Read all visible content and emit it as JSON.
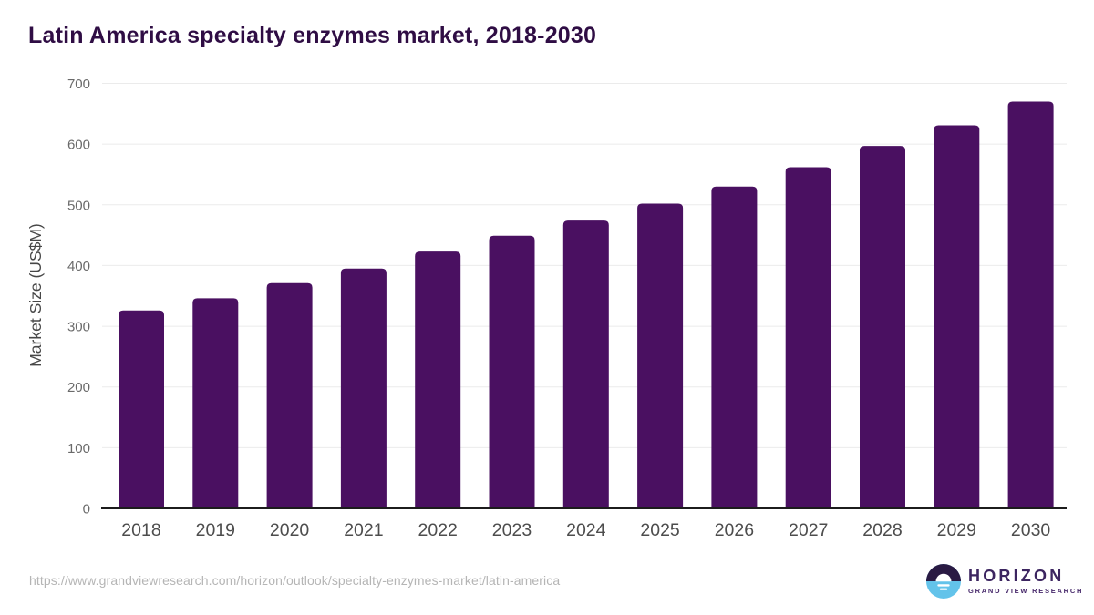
{
  "title": "Latin America specialty enzymes market, 2018-2030",
  "chart_data": {
    "type": "bar",
    "title": "Latin America specialty enzymes market, 2018-2030",
    "categories": [
      "2018",
      "2019",
      "2020",
      "2021",
      "2022",
      "2023",
      "2024",
      "2025",
      "2026",
      "2027",
      "2028",
      "2029",
      "2030"
    ],
    "values": [
      326,
      346,
      371,
      395,
      423,
      449,
      474,
      502,
      530,
      562,
      597,
      631,
      670
    ],
    "xlabel": "",
    "ylabel": "Market Size (US$M)",
    "ylim": [
      0,
      700
    ],
    "ytick_interval": 100,
    "grid": true,
    "legend": "none",
    "style": {
      "bar_color": "#4a1061",
      "grid_color": "#ebebeb",
      "axis_color": "#1c1c1c",
      "ytick_color": "#6a6a6a",
      "xtick_color": "#4d4d4d",
      "ylabel_color": "#474747"
    }
  },
  "footer": {
    "source_url": "https://www.grandviewresearch.com/horizon/outlook/specialty-enzymes-market/latin-america"
  },
  "logo": {
    "brand": "HORIZON",
    "sub_brand": "GRAND VIEW RESEARCH",
    "icon": "horizon-sun-icon",
    "colors": {
      "icon_top": "#2a1a43",
      "icon_bottom": "#63c3ea",
      "icon_sun": "#ffffff",
      "brand_text": "#3c2560"
    }
  }
}
